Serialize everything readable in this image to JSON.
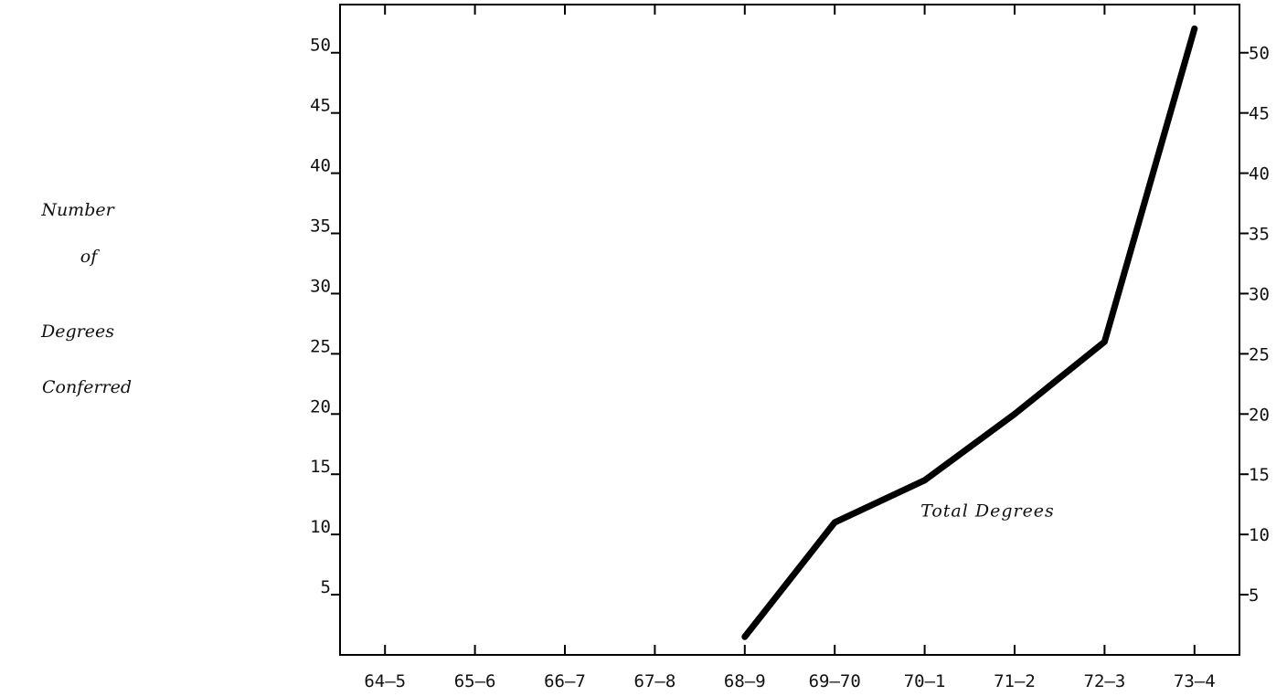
{
  "chart_data": {
    "type": "line",
    "title": "",
    "xlabel": "",
    "ylabel_lines": [
      "Number",
      "of",
      "Degrees",
      "Conferred"
    ],
    "categories": [
      "64-5",
      "65-6",
      "66-7",
      "67-8",
      "68-9",
      "69-70",
      "70-1",
      "71-2",
      "72-3",
      "73-4"
    ],
    "ylim": [
      0,
      54
    ],
    "yticks": [
      5,
      10,
      15,
      20,
      25,
      30,
      35,
      40,
      45,
      50
    ],
    "series": [
      {
        "values": [
          null,
          null,
          null,
          null,
          1.5,
          11,
          14.5,
          20,
          26,
          52
        ],
        "color": "#000000"
      }
    ],
    "annotations": [
      {
        "text": "Total Degrees",
        "x": 6.7,
        "y": 11.5
      }
    ],
    "grid": false,
    "legend": "none",
    "right_axis": true
  }
}
